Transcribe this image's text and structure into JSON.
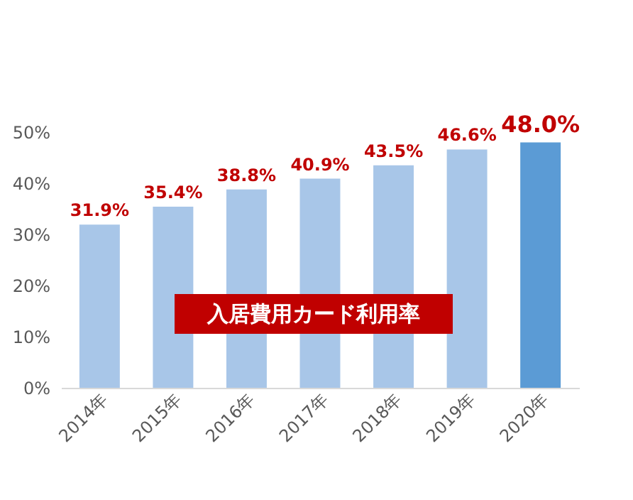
{
  "chart_data": {
    "type": "bar",
    "categories": [
      "2014年",
      "2015年",
      "2016年",
      "2017年",
      "2018年",
      "2019年",
      "2020年"
    ],
    "values": [
      31.9,
      35.4,
      38.8,
      40.9,
      43.5,
      46.6,
      48.0
    ],
    "colors": [
      "#a8c6e8",
      "#a8c6e8",
      "#a8c6e8",
      "#a8c6e8",
      "#a8c6e8",
      "#a8c6e8",
      "#5b9bd5"
    ],
    "value_labels": [
      "31.9%",
      "35.4%",
      "38.8%",
      "40.9%",
      "43.5%",
      "46.6%",
      "48.0%"
    ],
    "ylim": [
      0,
      50
    ],
    "yticks": [
      {
        "value": 0,
        "label": "0%"
      },
      {
        "value": 10,
        "label": "10%"
      },
      {
        "value": 20,
        "label": "20%"
      },
      {
        "value": 30,
        "label": "30%"
      },
      {
        "value": 40,
        "label": "40%"
      },
      {
        "value": 50,
        "label": "50%"
      }
    ],
    "annotations": [
      "入居費用カード利用率"
    ],
    "grid": false
  }
}
